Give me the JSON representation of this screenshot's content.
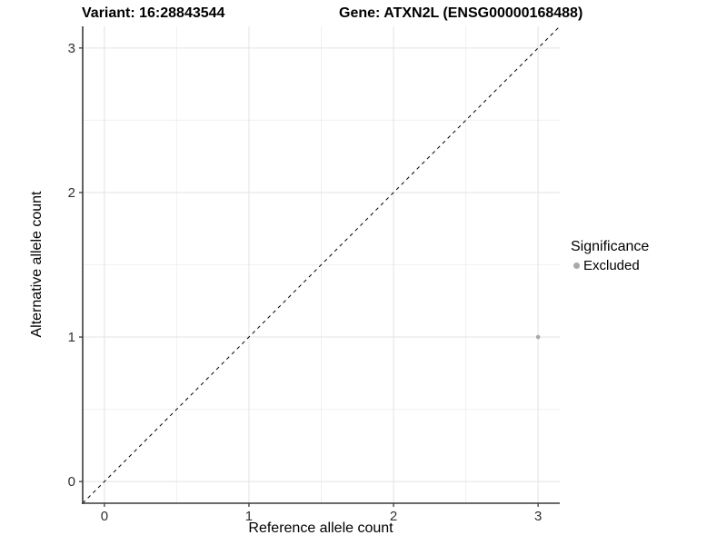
{
  "figure": {
    "title_left": "Variant: 16:28843544",
    "title_right": "Gene: ATXN2L (ENSG00000168488)"
  },
  "chart_data": {
    "type": "scatter",
    "title": "Variant: 16:28843544   Gene: ATXN2L (ENSG00000168488)",
    "xlabel": "Reference allele count",
    "ylabel": "Alternative allele count",
    "xlim": [
      -0.15,
      3.15
    ],
    "ylim": [
      -0.15,
      3.15
    ],
    "x_ticks": [
      0,
      1,
      2,
      3
    ],
    "y_ticks": [
      0,
      1,
      2,
      3
    ],
    "x_minor_ticks": [
      0.5,
      1.5,
      2.5
    ],
    "y_minor_ticks": [
      0.5,
      1.5,
      2.5
    ],
    "grid": true,
    "series": [
      {
        "name": "Excluded",
        "color": "#a9a9a9",
        "points": [
          {
            "x": 3,
            "y": 1
          }
        ]
      }
    ],
    "reference_line": {
      "type": "identity",
      "style": "dashed",
      "color": "#000000",
      "dash": "4 4"
    },
    "legend": {
      "title": "Significance",
      "position": "right",
      "items": [
        {
          "label": "Excluded",
          "color": "#a9a9a9"
        }
      ]
    },
    "colors": {
      "background": "#ffffff",
      "grid_major": "#e3e3e3",
      "grid_minor": "#f0f0f0",
      "axis_line": "#3a3a3a",
      "tick_label": "#303030"
    }
  }
}
